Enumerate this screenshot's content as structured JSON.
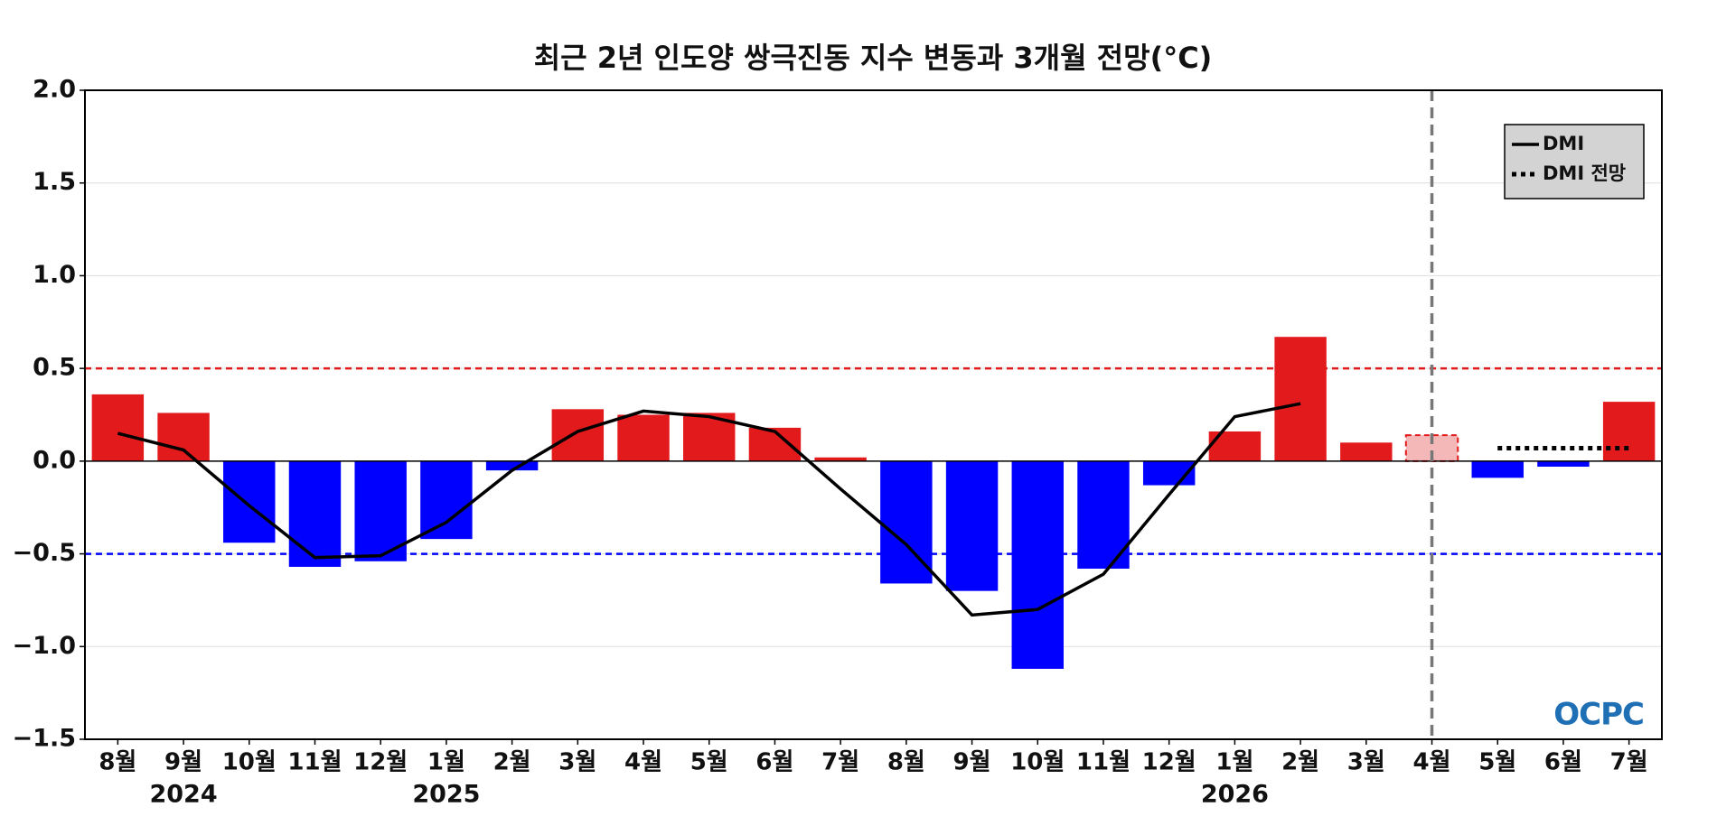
{
  "chart_data": {
    "type": "bar",
    "title": "최근 2년 인도양 쌍극진동 지수 변동과 3개월 전망(°C)",
    "categories": [
      "8월",
      "9월",
      "10월",
      "11월",
      "12월",
      "1월",
      "2월",
      "3월",
      "4월",
      "5월",
      "6월",
      "7월",
      "8월",
      "9월",
      "10월",
      "11월",
      "12월",
      "1월",
      "2월",
      "3월",
      "4월",
      "5월",
      "6월",
      "7월"
    ],
    "years": [
      null,
      "2024",
      null,
      null,
      null,
      "2025",
      null,
      null,
      null,
      null,
      null,
      null,
      null,
      null,
      null,
      null,
      null,
      "2026",
      null,
      null,
      null,
      null,
      null,
      null
    ],
    "values": [
      0.36,
      0.26,
      -0.44,
      -0.57,
      -0.54,
      -0.42,
      -0.05,
      0.28,
      0.25,
      0.26,
      0.18,
      0.02,
      -0.66,
      -0.7,
      -1.12,
      -0.58,
      -0.13,
      0.16,
      0.67,
      0.1,
      0.14,
      -0.09,
      -0.03,
      0.32
    ],
    "bar_colors": [
      "#e31a1c",
      "#e31a1c",
      "#0000ff",
      "#0000ff",
      "#0000ff",
      "#0000ff",
      "#0000ff",
      "#e31a1c",
      "#e31a1c",
      "#e31a1c",
      "#e31a1c",
      "#e31a1c",
      "#0000ff",
      "#0000ff",
      "#0000ff",
      "#0000ff",
      "#0000ff",
      "#e31a1c",
      "#e31a1c",
      "#e31a1c",
      "#f4b8b8",
      "#0000ff",
      "#0000ff",
      "#e31a1c"
    ],
    "dashed_bars": [
      20
    ],
    "vline_index": 20,
    "series": [
      {
        "name": "DMI",
        "color": "#000000",
        "style": "solid",
        "values": [
          0.15,
          0.06,
          -0.24,
          -0.52,
          -0.51,
          -0.33,
          -0.05,
          0.16,
          0.27,
          0.24,
          0.16,
          -0.15,
          -0.45,
          -0.83,
          -0.8,
          -0.61,
          -0.18,
          0.24,
          0.31,
          null,
          null,
          null,
          null,
          null
        ]
      },
      {
        "name": "DMI 전망",
        "color": "#000000",
        "style": "dotted",
        "values": [
          null,
          null,
          null,
          null,
          null,
          null,
          null,
          null,
          null,
          null,
          null,
          null,
          null,
          null,
          null,
          null,
          null,
          null,
          null,
          null,
          null,
          0.07,
          0.07,
          0.07
        ]
      }
    ],
    "hlines": [
      {
        "value": 0.5,
        "color": "#e31a1c"
      },
      {
        "value": -0.5,
        "color": "#0000ff"
      }
    ],
    "ylim": [
      -1.5,
      2.0
    ],
    "yticks": [
      {
        "value": -1.5,
        "label": "−1.5"
      },
      {
        "value": -1.0,
        "label": "−1.0"
      },
      {
        "value": -0.5,
        "label": "−0.5"
      },
      {
        "value": 0,
        "label": "0.0"
      },
      {
        "value": 0.5,
        "label": "0.5"
      },
      {
        "value": 1.0,
        "label": "1.0"
      },
      {
        "value": 1.5,
        "label": "1.5"
      },
      {
        "value": 2.0,
        "label": "2.0"
      }
    ],
    "grid": true,
    "legend": "upper right",
    "logo": "OCPC"
  }
}
